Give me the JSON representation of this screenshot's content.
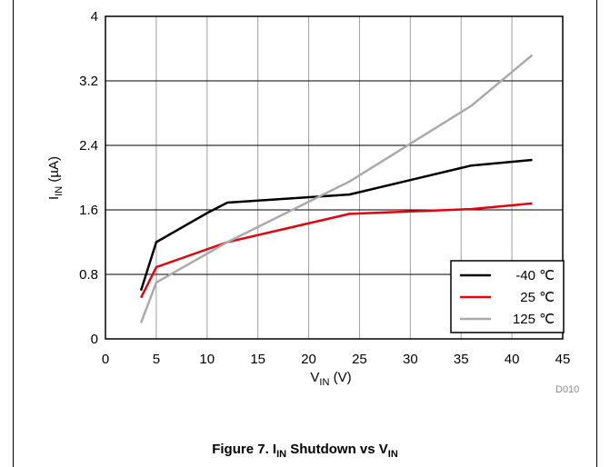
{
  "chart_data": {
    "type": "line",
    "title": "",
    "xlabel": "V",
    "xlabel_sub": "IN",
    "xlabel_unit": " (V)",
    "ylabel": "I",
    "ylabel_sub": "IN",
    "ylabel_unit": " (µA)",
    "xlim": [
      0,
      45
    ],
    "ylim": [
      0,
      4
    ],
    "xticks": [
      0,
      5,
      10,
      15,
      20,
      25,
      30,
      35,
      40,
      45
    ],
    "yticks": [
      0,
      0.8,
      1.6,
      2.4,
      3.2,
      4
    ],
    "ytick_labels": [
      "0",
      "0.8",
      "1.6",
      "2.4",
      "3.2",
      "4"
    ],
    "grid": true,
    "legend_position": "bottom-right",
    "series": [
      {
        "name": "-40 ℃",
        "color": "#000000",
        "x": [
          3.5,
          5,
          10,
          12,
          24,
          30,
          36,
          42
        ],
        "y": [
          0.6,
          1.2,
          1.56,
          1.69,
          1.79,
          1.97,
          2.15,
          2.22
        ]
      },
      {
        "name": "25 ℃",
        "color": "#e8000b",
        "x": [
          3.5,
          5,
          12,
          24,
          30,
          36,
          42
        ],
        "y": [
          0.51,
          0.89,
          1.2,
          1.55,
          1.58,
          1.61,
          1.68
        ]
      },
      {
        "name": "125 ℃",
        "color": "#aaaaaa",
        "x": [
          3.5,
          5,
          12,
          24,
          30,
          36,
          42
        ],
        "y": [
          0.2,
          0.7,
          1.2,
          1.95,
          2.42,
          2.89,
          3.52
        ]
      }
    ]
  },
  "figure_code": "D010",
  "caption": {
    "prefix": "Figure 7. I",
    "sub1": "IN",
    "middle": " Shutdown vs V",
    "sub2": "IN"
  }
}
